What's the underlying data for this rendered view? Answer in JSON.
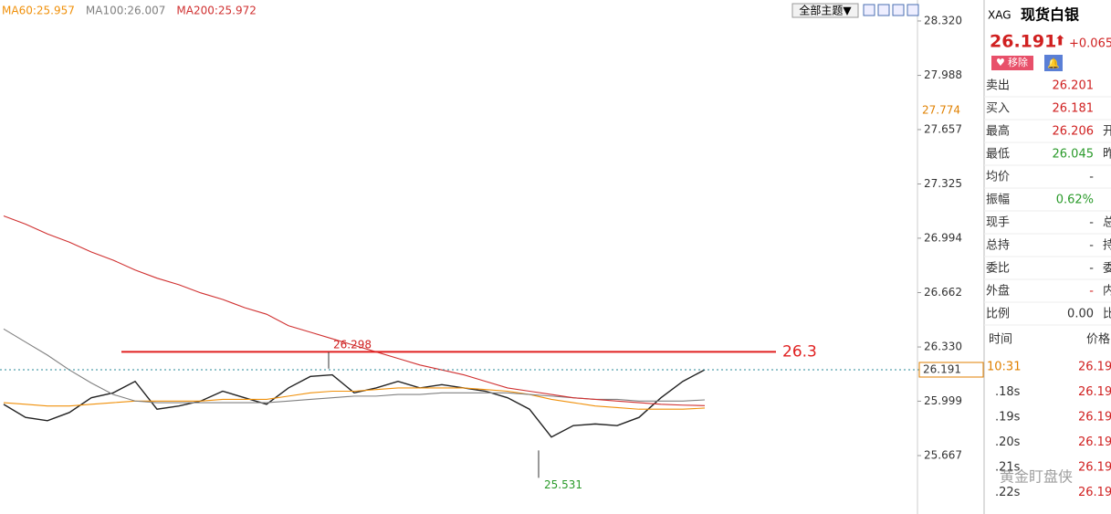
{
  "chart_data": {
    "type": "line",
    "ylim": [
      25.316,
      28.448
    ],
    "yticks": [
      {
        "value": 28.32,
        "label": "28.320"
      },
      27.988,
      27.657,
      27.325,
      26.994,
      26.662,
      {
        "value": 26.33,
        "label": "26.330"
      },
      25.999,
      25.667
    ],
    "series": [
      {
        "color": "#222222",
        "values": [
          25.98,
          25.9,
          25.88,
          25.93,
          26.02,
          26.05,
          26.12,
          25.95,
          25.97,
          26.0,
          26.06,
          26.02,
          25.98,
          26.08,
          26.15,
          26.16,
          26.05,
          26.08,
          26.12,
          26.08,
          26.1,
          26.08,
          26.06,
          26.02,
          25.95,
          25.78,
          25.85,
          25.86,
          25.85,
          25.9,
          26.02,
          26.12,
          26.191
        ]
      },
      {
        "name": "MA60:25.957",
        "color": "#f0900a",
        "values": [
          25.99,
          25.98,
          25.97,
          25.97,
          25.98,
          25.99,
          26.0,
          26.0,
          26.0,
          26.0,
          26.01,
          26.01,
          26.01,
          26.03,
          26.05,
          26.06,
          26.06,
          26.07,
          26.08,
          26.08,
          26.08,
          26.08,
          26.07,
          26.06,
          26.04,
          26.01,
          25.99,
          25.97,
          25.96,
          25.95,
          25.95,
          25.95,
          25.957
        ]
      },
      {
        "name": "MA100:26.007",
        "color": "#808080",
        "values": [
          26.44,
          26.36,
          26.28,
          26.19,
          26.11,
          26.04,
          26.0,
          25.99,
          25.99,
          25.99,
          25.99,
          25.99,
          25.99,
          26.0,
          26.01,
          26.02,
          26.03,
          26.03,
          26.04,
          26.04,
          26.05,
          26.05,
          26.05,
          26.05,
          26.04,
          26.03,
          26.02,
          26.01,
          26.01,
          26.0,
          26.0,
          26.0,
          26.007
        ]
      },
      {
        "name": "MA200:25.972",
        "color": "#d03030",
        "values": [
          27.13,
          27.08,
          27.02,
          26.97,
          26.91,
          26.86,
          26.8,
          26.75,
          26.71,
          26.66,
          26.62,
          26.57,
          26.53,
          26.46,
          26.42,
          26.38,
          26.34,
          26.3,
          26.26,
          26.22,
          26.19,
          26.16,
          26.12,
          26.08,
          26.06,
          26.04,
          26.02,
          26.01,
          26.0,
          25.99,
          25.98,
          25.975,
          25.972
        ]
      }
    ],
    "high": 26.298,
    "low": 25.531,
    "resistance": 26.3,
    "marker": 27.774,
    "last": 26.191
  },
  "toolbar": {
    "theme": "全部主题▼"
  },
  "quote": {
    "symbol": "XAG",
    "name": "现货白银",
    "price": "26.191",
    "change": "+0.065",
    "remove": "移除",
    "rows": [
      [
        "卖出",
        "26.201"
      ],
      [
        "买入",
        "26.181"
      ],
      [
        "最高",
        "26.206",
        "开"
      ],
      [
        "最低",
        "26.045",
        "昨"
      ],
      [
        "均价",
        "-"
      ],
      [
        "振幅",
        "0.62%"
      ],
      [
        "现手",
        "-",
        "总"
      ],
      [
        "总持",
        "-",
        "持"
      ],
      [
        "委比",
        "-",
        "委"
      ],
      [
        "外盘",
        "-",
        "内"
      ],
      [
        "比例",
        "0.00",
        "比"
      ]
    ],
    "tick_header": [
      "时间",
      "价格"
    ],
    "ticks": [
      [
        "10:31",
        "26.19"
      ],
      [
        ".18s",
        "26.19"
      ],
      [
        ".19s",
        "26.19"
      ],
      [
        ".20s",
        "26.19"
      ],
      [
        ".21s",
        "26.19"
      ],
      [
        ".22s",
        "26.19"
      ]
    ]
  },
  "watermark": "黄金盯盘侠"
}
